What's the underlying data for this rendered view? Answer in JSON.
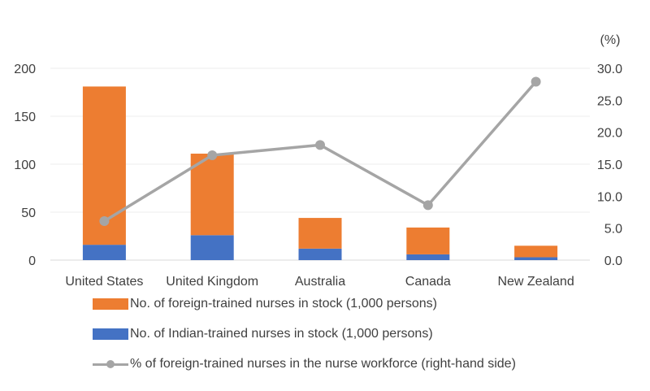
{
  "chart_data": {
    "type": "bar",
    "stacked": true,
    "categories": [
      "United States",
      "United Kingdom",
      "Australia",
      "Canada",
      "New Zealand"
    ],
    "series": [
      {
        "name": "No. of Indian-trained nurses in stock (1,000 persons)",
        "type": "bar",
        "axis": "left",
        "color": "#4472c4",
        "values": [
          16,
          26,
          12,
          6,
          3
        ]
      },
      {
        "name": "No. of foreign-trained nurses in stock (1,000 persons)",
        "type": "bar",
        "axis": "left",
        "color": "#ed7d31",
        "values": [
          165,
          85,
          32,
          28,
          12
        ]
      },
      {
        "name": "% of foreign-trained nurses in the nurse workforce (right-hand side)",
        "type": "line",
        "axis": "right",
        "color": "#a5a5a5",
        "values": [
          6.1,
          16.4,
          18.0,
          8.6,
          27.9
        ]
      }
    ],
    "y_left": {
      "min": 0,
      "max": 200,
      "ticks": [
        "0",
        "50",
        "100",
        "150",
        "200"
      ]
    },
    "y_right": {
      "min": 0,
      "max": 30,
      "unit": "(%)",
      "ticks": [
        "0.0",
        "5.0",
        "10.0",
        "15.0",
        "20.0",
        "25.0",
        "30.0"
      ]
    },
    "grid": true,
    "legend_position": "bottom"
  },
  "legend": [
    {
      "label": "No. of foreign-trained nurses in stock (1,000 persons)",
      "kind": "bar",
      "color": "#ed7d31"
    },
    {
      "label": "No. of Indian-trained nurses in stock (1,000 persons)",
      "kind": "bar",
      "color": "#4472c4"
    },
    {
      "label": "% of foreign-trained nurses in the nurse workforce (right-hand side)",
      "kind": "line",
      "color": "#a5a5a5"
    }
  ]
}
